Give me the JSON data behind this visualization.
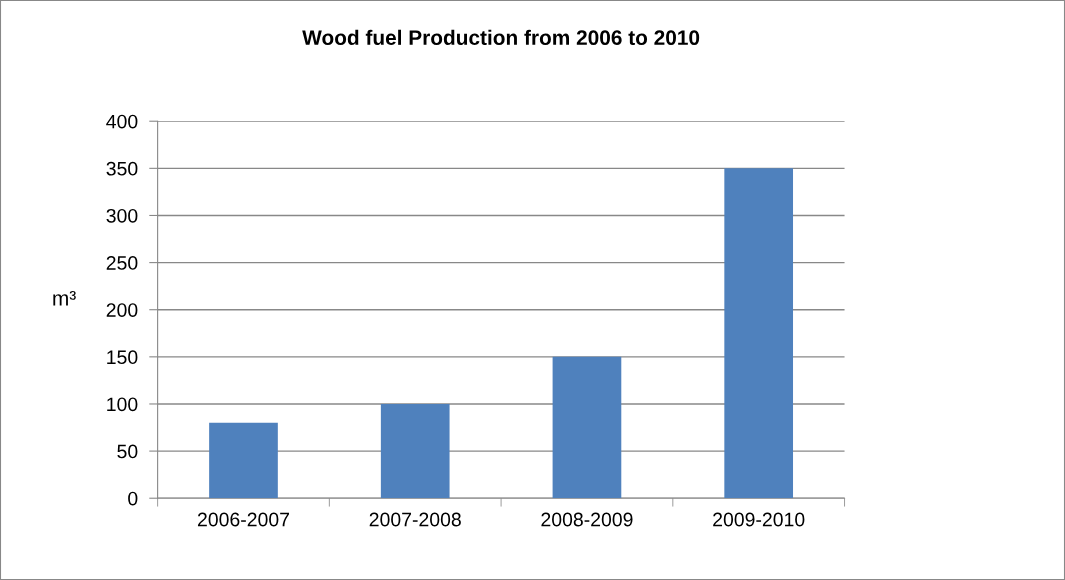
{
  "chart_data": {
    "type": "bar",
    "title": "Wood fuel Production from 2006 to 2010",
    "ylabel": "m³",
    "categories": [
      "2006-2007",
      "2007-2008",
      "2008-2009",
      "2009-2010"
    ],
    "values": [
      80,
      100,
      150,
      350
    ],
    "color": "#4f81bd",
    "ylim": [
      0,
      400
    ],
    "yticks": [
      0,
      50,
      100,
      150,
      200,
      250,
      300,
      350,
      400
    ],
    "grid": "y",
    "legend": false
  }
}
